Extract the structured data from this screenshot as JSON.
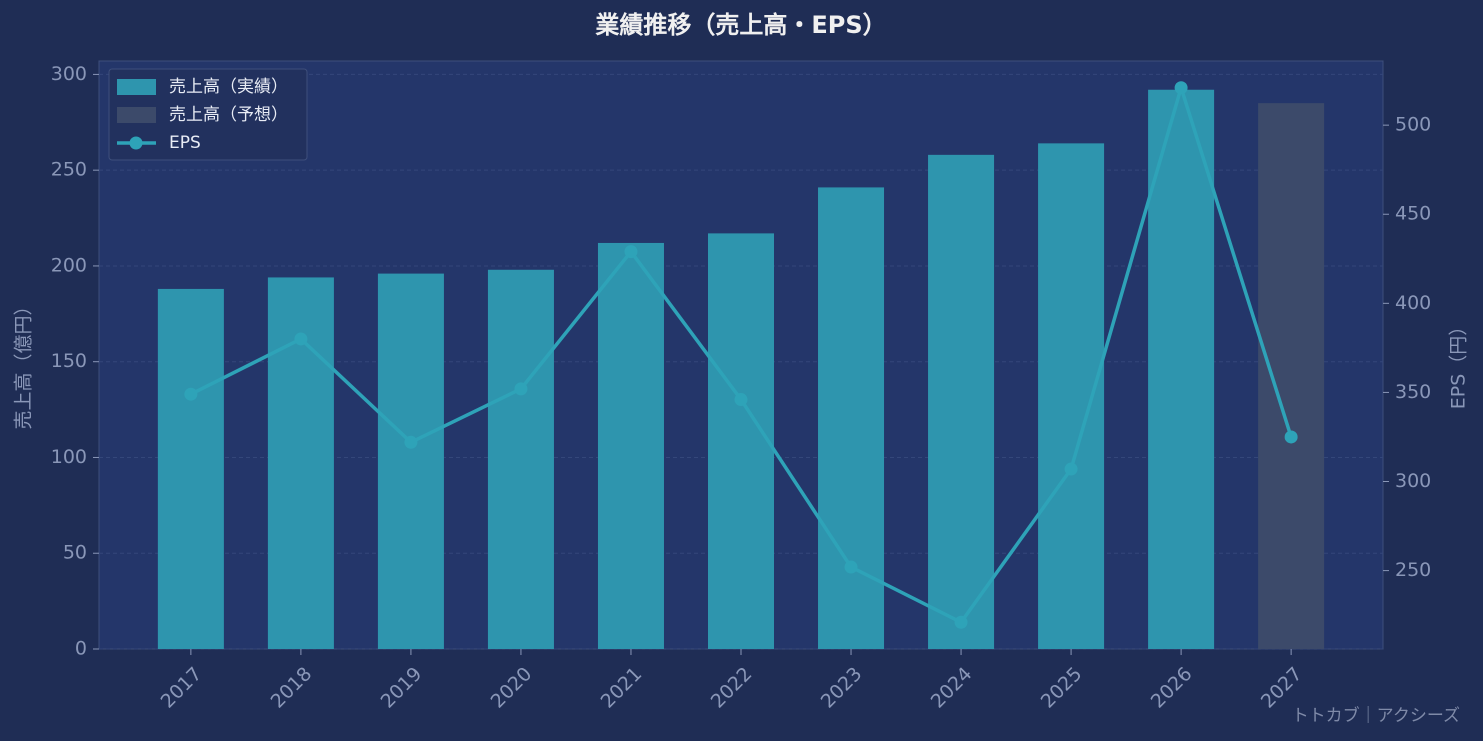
{
  "chart_data": {
    "type": "bar_line",
    "title": "業績推移（売上高・EPS）",
    "ylabel": "売上高（億円）",
    "y2label": "EPS（円）",
    "annotation": "トトカブ｜アクシーズ",
    "categories": [
      "2017",
      "2018",
      "2019",
      "2020",
      "2021",
      "2022",
      "2023",
      "2024",
      "2025",
      "2026",
      "2027"
    ],
    "series": [
      {
        "name": "売上高（実績）",
        "type": "bar",
        "color": "#2e95ae",
        "values": [
          188,
          194,
          196,
          198,
          212,
          217,
          241,
          258,
          264,
          292,
          null
        ]
      },
      {
        "name": "売上高（予想）",
        "type": "bar",
        "color": "#3c4a6a",
        "values": [
          null,
          null,
          null,
          null,
          null,
          null,
          null,
          null,
          null,
          null,
          285
        ]
      },
      {
        "name": "EPS",
        "type": "line",
        "axis": "y2",
        "color": "#2ea3b8",
        "values": [
          349,
          380,
          322,
          352,
          429,
          346,
          252,
          221,
          307,
          521,
          325
        ]
      }
    ],
    "ylim": [
      0,
      307
    ],
    "yticks": [
      0,
      50,
      100,
      150,
      200,
      250,
      300
    ],
    "y2lim": [
      206,
      536
    ],
    "y2ticks": [
      250,
      300,
      350,
      400,
      450,
      500
    ],
    "grid": true,
    "legend": "upper left"
  }
}
